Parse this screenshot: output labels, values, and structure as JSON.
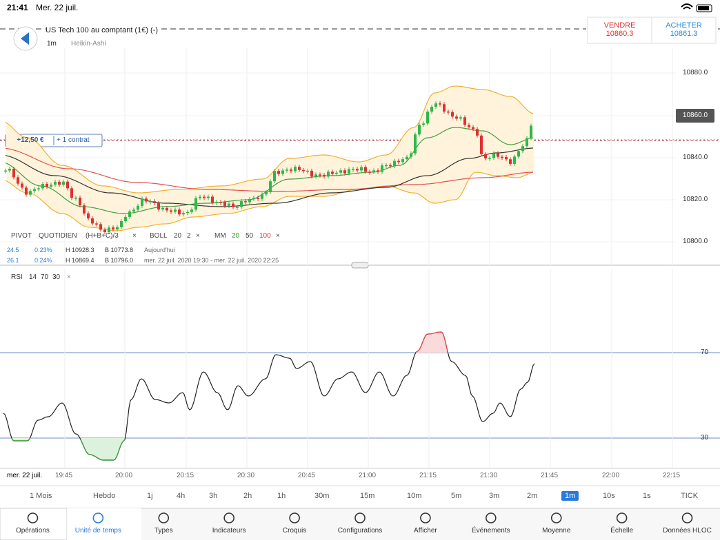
{
  "status_bar": {
    "time": "21:41",
    "date": "Mer. 22 juil."
  },
  "instrument": {
    "name": "US Tech 100 au comptant (1€) (-)",
    "interval": "1m",
    "chart_style": "Heikin-Ashi"
  },
  "quote": {
    "sell_label": "VENDRE",
    "sell": "10860.3",
    "buy_label": "ACHETER",
    "buy": "10861.3"
  },
  "position": {
    "pnl": "+12,50 €",
    "size": "+ 1 contrat"
  },
  "price_axis": {
    "ticks": [
      "10880.0",
      "10860.0",
      "10840.0",
      "10820.0",
      "10800.0"
    ],
    "current": "10860.0"
  },
  "legend": [
    "PIVOT",
    "QUOTIDIEN",
    "(H+B+C)/3",
    "×",
    "BOLL",
    "20",
    "2",
    "×",
    "MM",
    "20",
    "50",
    "100",
    "×"
  ],
  "stats": [
    [
      "24.5",
      "0.23%",
      "H 10928.3",
      "B 10773.8",
      "Aujourd'hui"
    ],
    [
      "26.1",
      "0.24%",
      "H 10869.4",
      "B 10796.0",
      "mer. 22 juil. 2020 19:30 - mer. 22 juil. 2020 22:25"
    ]
  ],
  "rsi": {
    "label": "RSI",
    "params": [
      "14",
      "70",
      "30"
    ],
    "close": "×",
    "ticks": [
      "70",
      "30"
    ]
  },
  "time_axis": [
    "mer. 22 juil.",
    "19:45",
    "20:00",
    "20:15",
    "20:30",
    "20:45",
    "21:00",
    "21:15",
    "21:30",
    "21:45",
    "22:00",
    "22:15"
  ],
  "timeframes": [
    "1 Mois",
    "Hebdo",
    "1j",
    "4h",
    "3h",
    "2h",
    "1h",
    "30m",
    "15m",
    "10m",
    "5m",
    "3m",
    "2m",
    "1m",
    "10s",
    "1s",
    "TICK"
  ],
  "selected_timeframe": 13,
  "toolbar": [
    "Opérations",
    "Unité de temps",
    "Types",
    "Indicateurs",
    "Croquis",
    "Configurations",
    "Afficher",
    "Événements",
    "Moyenne",
    "Échelle",
    "Données HLOC"
  ],
  "selected_tool": 1
}
